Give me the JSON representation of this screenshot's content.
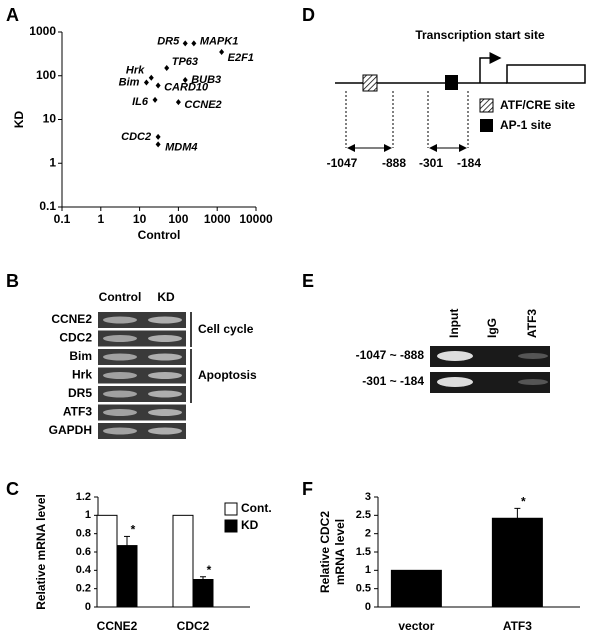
{
  "panel_labels": [
    "A",
    "B",
    "C",
    "D",
    "E",
    "F"
  ],
  "chart_data": [
    {
      "type": "scatter",
      "x_label": "Control",
      "y_label": "KD",
      "log_x": true,
      "log_y": true,
      "xlim": [
        0.1,
        10000
      ],
      "ylim": [
        0.1,
        1000
      ],
      "xticks": [
        0.1,
        1,
        10,
        100,
        1000,
        10000
      ],
      "yticks": [
        0.1,
        1,
        10,
        100,
        1000
      ],
      "point_labels": [
        "DR5",
        "MAPK1",
        "E2F1",
        "TP63",
        "Hrk",
        "Bim",
        "IL6",
        "CARD10",
        "BUB3",
        "CCNE2",
        "CDC2",
        "MDM4"
      ],
      "x": [
        150,
        250,
        1300,
        50,
        20,
        15,
        25,
        30,
        150,
        100,
        30,
        30
      ],
      "values": [
        550,
        550,
        350,
        150,
        90,
        70,
        28,
        60,
        80,
        25,
        4,
        2.7
      ],
      "color": "#000000"
    },
    {
      "type": "bar",
      "y_label": "Relative mRNA level",
      "categories": [
        "CCNE2",
        "CDC2"
      ],
      "ylim": [
        0,
        1.2
      ],
      "yticks": [
        0,
        0.2,
        0.4,
        0.6,
        0.8,
        1,
        1.2
      ],
      "series": [
        {
          "name": "Cont.",
          "color": "#ffffff",
          "values": [
            1,
            1
          ]
        },
        {
          "name": "KD",
          "color": "#000000",
          "values": [
            0.67,
            0.3
          ],
          "errors": [
            0.1,
            0.03
          ],
          "annotations": [
            "*",
            "*"
          ]
        }
      ]
    },
    {
      "type": "bar",
      "y_label": [
        "Relative CDC2",
        "mRNA level"
      ],
      "categories": [
        "vector",
        "ATF3"
      ],
      "ylim": [
        0,
        3
      ],
      "yticks": [
        0,
        0.5,
        1,
        1.5,
        2,
        2.5,
        3
      ],
      "series": [
        {
          "color": "#000000",
          "values": [
            1,
            2.42
          ],
          "errors": [
            null,
            0.27
          ],
          "annotations": [
            null,
            "*"
          ]
        }
      ]
    }
  ],
  "gel_b": {
    "columns": [
      "Control",
      "KD"
    ],
    "rows": [
      "CCNE2",
      "CDC2",
      "Bim",
      "Hrk",
      "DR5",
      "ATF3",
      "GAPDH"
    ],
    "groups": [
      "Cell cycle",
      "Apoptosis"
    ]
  },
  "diagram_d": {
    "title": "Transcription start site",
    "legend": [
      "ATF/CRE site",
      "AP-1 site"
    ],
    "regions": [
      {
        "start": "-1047",
        "end": "-888"
      },
      {
        "start": "-301",
        "end": "-184"
      }
    ]
  },
  "gel_e": {
    "columns": [
      "Input",
      "IgG",
      "ATF3"
    ],
    "rows": [
      "-1047 ~ -888",
      "-301 ~ -184"
    ]
  }
}
